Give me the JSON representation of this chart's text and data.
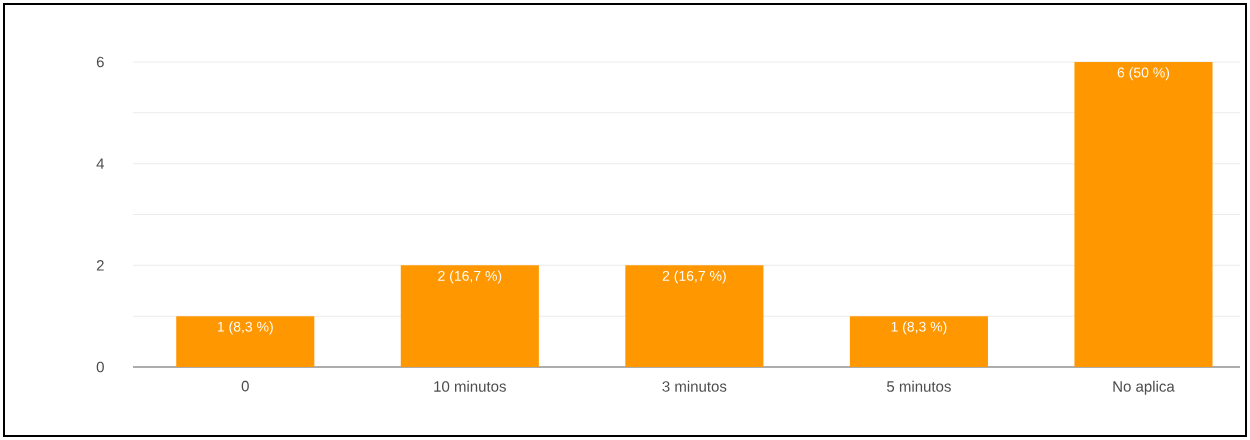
{
  "chart_data": {
    "type": "bar",
    "categories": [
      "0",
      "10 minutos",
      "3 minutos",
      "5 minutos",
      "No aplica"
    ],
    "values": [
      1,
      2,
      2,
      1,
      6
    ],
    "value_labels": [
      "1 (8,3 %)",
      "2 (16,7 %)",
      "2 (16,7 %)",
      "1 (8,3 %)",
      "6 (50 %)"
    ],
    "color": "#ff9800",
    "ylim": [
      0,
      6
    ],
    "yticks": [
      0,
      {
        "value": 1,
        "label": null
      },
      2,
      {
        "value": 3,
        "label": null
      },
      4,
      {
        "value": 5,
        "label": null
      },
      6
    ],
    "grid": "y"
  }
}
